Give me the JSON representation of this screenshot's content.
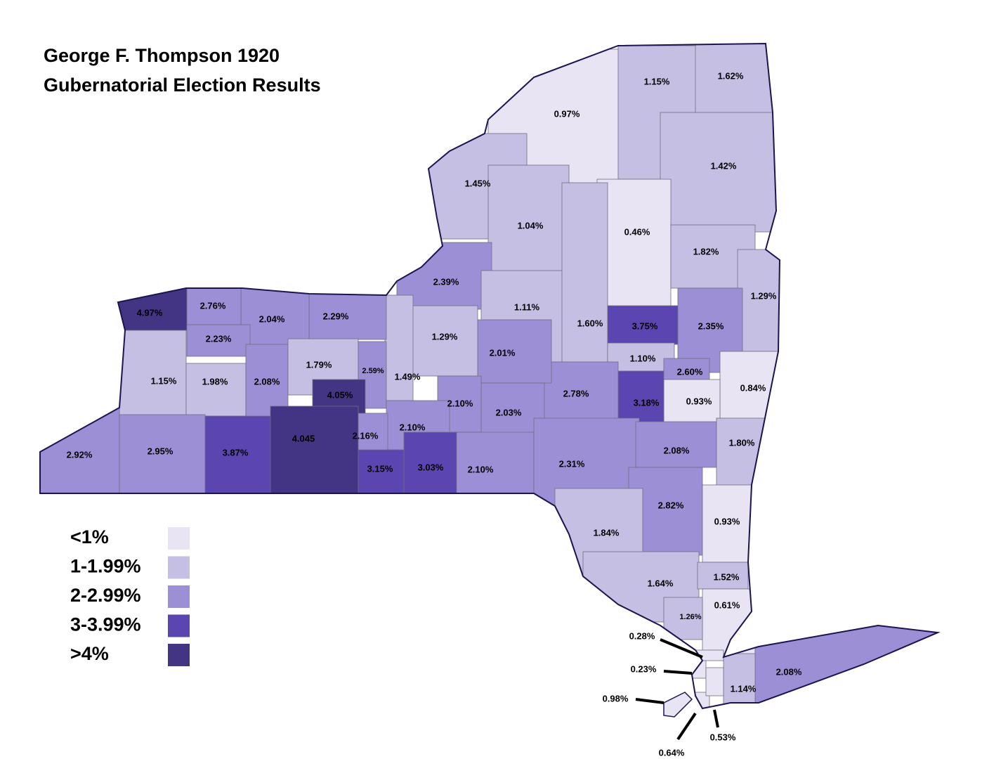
{
  "title": [
    "George F. Thompson 1920",
    "Gubernatorial Election Results"
  ],
  "legend": [
    {
      "label": "<1%",
      "color": "#e8e4f4"
    },
    {
      "label": "1-1.99%",
      "color": "#c5bfe4"
    },
    {
      "label": "2-2.99%",
      "color": "#9d8fd6"
    },
    {
      "label": "3-3.99%",
      "color": "#5b45b0"
    },
    {
      "label": ">4%",
      "color": "#433583"
    }
  ],
  "counties": [
    {
      "label": "0.97%",
      "color": "#e8e4f4"
    },
    {
      "label": "1.15%",
      "color": "#c5bfe4"
    },
    {
      "label": "1.62%",
      "color": "#c5bfe4"
    },
    {
      "label": "1.42%",
      "color": "#c5bfe4"
    },
    {
      "label": "1.45%",
      "color": "#c5bfe4"
    },
    {
      "label": "1.04%",
      "color": "#c5bfe4"
    },
    {
      "label": "0.46%",
      "color": "#e8e4f4"
    },
    {
      "label": "1.82%",
      "color": "#c5bfe4"
    },
    {
      "label": "1.29%",
      "color": "#c5bfe4"
    },
    {
      "label": "2.39%",
      "color": "#9d8fd6"
    },
    {
      "label": "1.11%",
      "color": "#c5bfe4"
    },
    {
      "label": "1.60%",
      "color": "#c5bfe4"
    },
    {
      "label": "3.75%",
      "color": "#5b45b0"
    },
    {
      "label": "2.35%",
      "color": "#9d8fd6"
    },
    {
      "label": "1.10%",
      "color": "#c5bfe4"
    },
    {
      "label": "2.60%",
      "color": "#9d8fd6"
    },
    {
      "label": "0.84%",
      "color": "#e8e4f4"
    },
    {
      "label": "0.93%",
      "color": "#e8e4f4"
    },
    {
      "label": "3.18%",
      "color": "#5b45b0"
    },
    {
      "label": "2.78%",
      "color": "#9d8fd6"
    },
    {
      "label": "2.01%",
      "color": "#9d8fd6"
    },
    {
      "label": "2.03%",
      "color": "#9d8fd6"
    },
    {
      "label": "1.29%",
      "color": "#c5bfe4"
    },
    {
      "label": "1.49%",
      "color": "#c5bfe4"
    },
    {
      "label": "2.29%",
      "color": "#9d8fd6"
    },
    {
      "label": "2.04%",
      "color": "#9d8fd6"
    },
    {
      "label": "2.76%",
      "color": "#9d8fd6"
    },
    {
      "label": "4.97%",
      "color": "#433583"
    },
    {
      "label": "2.23%",
      "color": "#9d8fd6"
    },
    {
      "label": "1.15%",
      "color": "#c5bfe4"
    },
    {
      "label": "1.98%",
      "color": "#c5bfe4"
    },
    {
      "label": "2.08%",
      "color": "#9d8fd6"
    },
    {
      "label": "1.79%",
      "color": "#c5bfe4"
    },
    {
      "label": "2.59%",
      "color": "#9d8fd6"
    },
    {
      "label": "4.05%",
      "color": "#433583"
    },
    {
      "label": "2.10%",
      "color": "#9d8fd6"
    },
    {
      "label": "2.10%",
      "color": "#9d8fd6"
    },
    {
      "label": "2.16%",
      "color": "#9d8fd6"
    },
    {
      "label": "3.15%",
      "color": "#5b45b0"
    },
    {
      "label": "3.03%",
      "color": "#5b45b0"
    },
    {
      "label": "2.10%",
      "color": "#9d8fd6"
    },
    {
      "label": "2.31%",
      "color": "#9d8fd6"
    },
    {
      "label": "2.08%",
      "color": "#9d8fd6"
    },
    {
      "label": "1.80%",
      "color": "#c5bfe4"
    },
    {
      "label": "2.92%",
      "color": "#9d8fd6"
    },
    {
      "label": "2.95%",
      "color": "#9d8fd6"
    },
    {
      "label": "3.87%",
      "color": "#5b45b0"
    },
    {
      "label": "4.045",
      "color": "#433583"
    },
    {
      "label": "2.82%",
      "color": "#9d8fd6"
    },
    {
      "label": "0.93%",
      "color": "#e8e4f4"
    },
    {
      "label": "1.84%",
      "color": "#c5bfe4"
    },
    {
      "label": "1.64%",
      "color": "#c5bfe4"
    },
    {
      "label": "1.52%",
      "color": "#c5bfe4"
    },
    {
      "label": "0.61%",
      "color": "#e8e4f4"
    },
    {
      "label": "1.26%",
      "color": "#c5bfe4"
    },
    {
      "label": "2.08%",
      "color": "#9d8fd6"
    },
    {
      "label": "1.14%",
      "color": "#c5bfe4"
    },
    {
      "label": "0.28%",
      "color": "#e8e4f4"
    },
    {
      "label": "0.23%",
      "color": "#e8e4f4"
    },
    {
      "label": "0.98%",
      "color": "#e8e4f4"
    },
    {
      "label": "0.64%",
      "color": "#e8e4f4"
    },
    {
      "label": "0.53%",
      "color": "#e8e4f4"
    }
  ]
}
